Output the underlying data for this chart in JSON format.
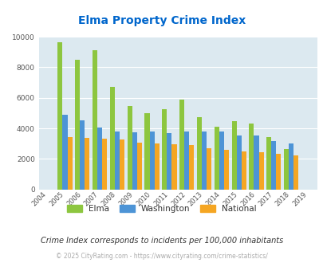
{
  "title": "Elma Property Crime Index",
  "years": [
    2004,
    2005,
    2006,
    2007,
    2008,
    2009,
    2010,
    2011,
    2012,
    2013,
    2014,
    2015,
    2016,
    2017,
    2018,
    2019
  ],
  "elma": [
    0,
    9650,
    8500,
    9100,
    6700,
    5450,
    5000,
    5250,
    5900,
    4750,
    4100,
    4450,
    4300,
    3450,
    2650,
    0
  ],
  "washington": [
    0,
    4900,
    4500,
    4050,
    3800,
    3750,
    3800,
    3700,
    3800,
    3800,
    3800,
    3550,
    3550,
    3150,
    3000,
    0
  ],
  "national": [
    0,
    3450,
    3350,
    3300,
    3250,
    3050,
    3000,
    2950,
    2900,
    2700,
    2600,
    2480,
    2450,
    2350,
    2200,
    0
  ],
  "elma_color": "#8dc63f",
  "washington_color": "#4d94d6",
  "national_color": "#f5a623",
  "bg_color": "#dce9f0",
  "title_color": "#0066cc",
  "subtitle": "Crime Index corresponds to incidents per 100,000 inhabitants",
  "footer": "© 2025 CityRating.com - https://www.cityrating.com/crime-statistics/",
  "ylim": [
    0,
    10000
  ],
  "yticks": [
    0,
    2000,
    4000,
    6000,
    8000,
    10000
  ]
}
